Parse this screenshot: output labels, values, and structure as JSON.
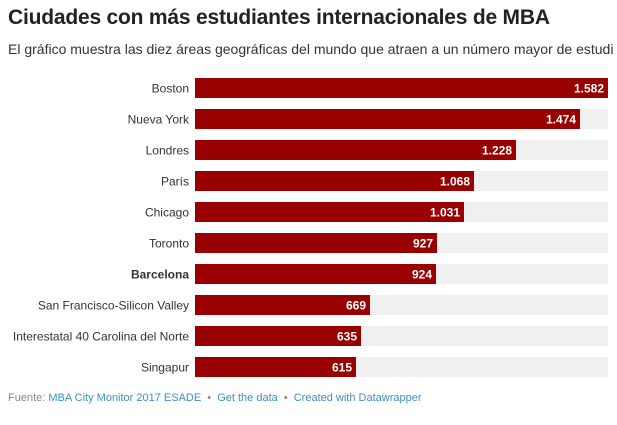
{
  "header": {
    "title": "Ciudades con más estudiantes internacionales de MBA",
    "subtitle": "El gráfico muestra las diez áreas geográficas del mundo que atraen a un número mayor de estudi"
  },
  "footer": {
    "source_label": "Fuente:",
    "source_link": "MBA City Monitor 2017 ESADE",
    "separator": "•",
    "data_link": "Get the data",
    "credit_link": "Created with Datawrapper"
  },
  "colors": {
    "bar": "#990000",
    "track": "#f0f0f0",
    "value_text": "#ffffff",
    "label_text": "#333333"
  },
  "chart_data": {
    "type": "bar",
    "orientation": "horizontal",
    "categories": [
      "Boston",
      "Nueva York",
      "Londres",
      "París",
      "Chicago",
      "Toronto",
      "Barcelona",
      "San Francisco-Silicon Valley",
      "Interestatal 40 Carolina del Norte",
      "Singapur"
    ],
    "values": [
      1582,
      1474,
      1228,
      1068,
      1031,
      927,
      924,
      669,
      635,
      615
    ],
    "value_labels": [
      "1.582",
      "1.474",
      "1.228",
      "1.068",
      "1.031",
      "927",
      "924",
      "669",
      "635",
      "615"
    ],
    "highlighted": [
      "Barcelona"
    ],
    "xlim": [
      0,
      1582
    ],
    "grid": false
  }
}
